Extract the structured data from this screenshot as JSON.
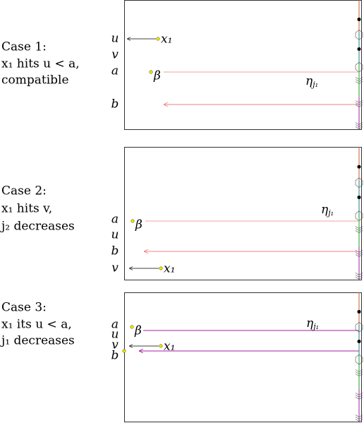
{
  "cases": [
    {
      "caption": [
        "Case 1:",
        "x₁ hits u < a,",
        "compatible"
      ],
      "side_labels": [
        "u",
        "v",
        "a",
        "b"
      ],
      "point_label": "x₁",
      "beta_label": "β",
      "eta_label": {
        "symbol": "η",
        "sub": "j₁"
      }
    },
    {
      "caption": [
        "Case 2:",
        "x₁ hits v,",
        "j₂ decreases"
      ],
      "side_labels": [
        "a",
        "u",
        "b",
        "v"
      ],
      "point_label": "x₁",
      "beta_label": "β",
      "eta_label": {
        "symbol": "η",
        "sub": "j₁"
      }
    },
    {
      "caption": [
        "Case 3:",
        "x₁ its u < a,",
        "j₁ decreases"
      ],
      "side_labels": [
        "a",
        "u",
        "v",
        "b"
      ],
      "point_label": "x₁",
      "beta_label": "β",
      "eta_label": {
        "symbol": "η",
        "sub": "j₁"
      }
    }
  ]
}
